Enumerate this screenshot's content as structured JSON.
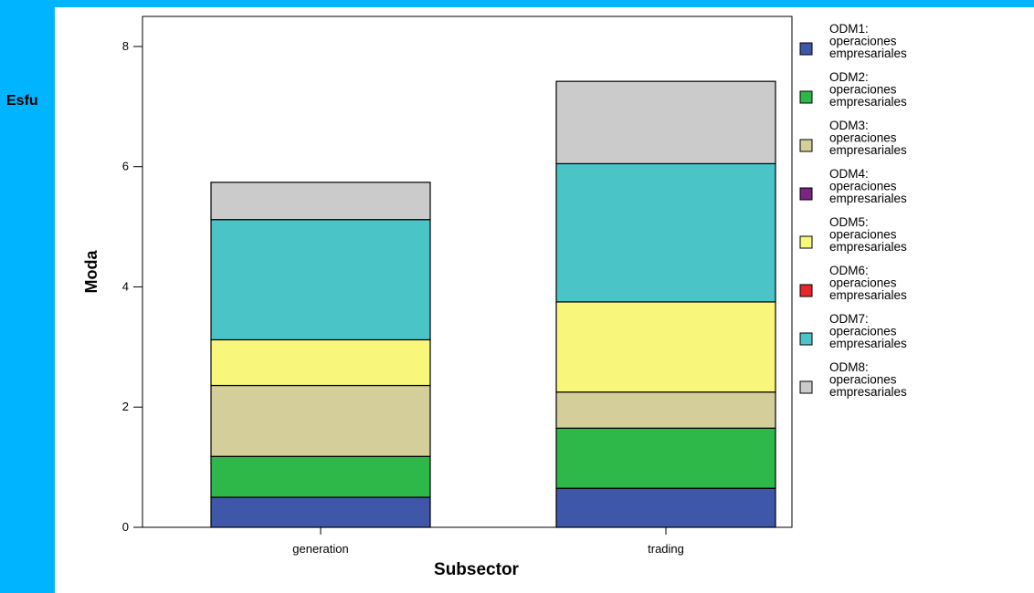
{
  "background_text": "Esfu",
  "chart_data": {
    "type": "bar",
    "stacked": true,
    "xlabel": "Subsector",
    "ylabel": "Moda",
    "ylim": [
      0,
      8.5
    ],
    "yticks": [
      "0",
      "2",
      "4",
      "6",
      "8"
    ],
    "categories": [
      "generation",
      "trading"
    ],
    "series": [
      {
        "name": [
          "ODM1:",
          "operaciones",
          "empresariales"
        ],
        "color": "#3f57a9",
        "values": [
          0.5,
          0.65
        ]
      },
      {
        "name": [
          "ODM2:",
          "operaciones",
          "empresariales"
        ],
        "color": "#2eb84a",
        "values": [
          0.68,
          1.0
        ]
      },
      {
        "name": [
          "ODM3:",
          "operaciones",
          "empresariales"
        ],
        "color": "#d3ce9a",
        "values": [
          1.18,
          0.6
        ]
      },
      {
        "name": [
          "ODM4:",
          "operaciones",
          "empresariales"
        ],
        "color": "#7a2582",
        "values": [
          0,
          0
        ]
      },
      {
        "name": [
          "ODM5:",
          "operaciones",
          "empresariales"
        ],
        "color": "#f9f77b",
        "values": [
          0.76,
          1.5
        ]
      },
      {
        "name": [
          "ODM6:",
          "operaciones",
          "empresariales"
        ],
        "color": "#e8262e",
        "values": [
          0,
          0
        ]
      },
      {
        "name": [
          "ODM7:",
          "operaciones",
          "empresariales"
        ],
        "color": "#4bc4c8",
        "values": [
          2.0,
          2.3
        ]
      },
      {
        "name": [
          "ODM8:",
          "operaciones",
          "empresariales"
        ],
        "color": "#cbcbcb",
        "values": [
          0.62,
          1.37
        ]
      }
    ],
    "grid": false,
    "legend_position": "right"
  }
}
